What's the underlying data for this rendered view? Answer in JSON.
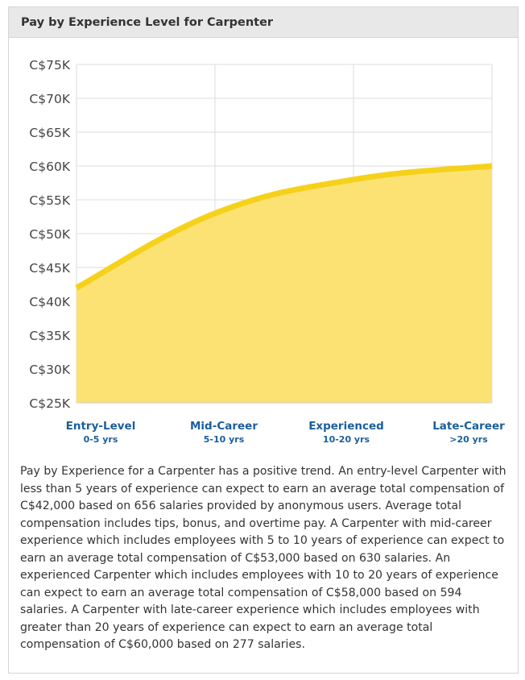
{
  "panel": {
    "title": "Pay by Experience Level for Carpenter"
  },
  "chart_data": {
    "type": "area",
    "title": "",
    "xlabel": "",
    "ylabel": "",
    "ylim": [
      25000,
      75000
    ],
    "yticks": [
      {
        "value": 75000,
        "label": "C$75K"
      },
      {
        "value": 70000,
        "label": "C$70K"
      },
      {
        "value": 65000,
        "label": "C$65K"
      },
      {
        "value": 60000,
        "label": "C$60K"
      },
      {
        "value": 55000,
        "label": "C$55K"
      },
      {
        "value": 50000,
        "label": "C$50K"
      },
      {
        "value": 45000,
        "label": "C$45K"
      },
      {
        "value": 40000,
        "label": "C$40K"
      },
      {
        "value": 35000,
        "label": "C$35K"
      },
      {
        "value": 30000,
        "label": "C$30K"
      },
      {
        "value": 25000,
        "label": "C$25K"
      }
    ],
    "categories": [
      {
        "name": "Entry-Level",
        "range": "0-5 yrs"
      },
      {
        "name": "Mid-Career",
        "range": "5-10 yrs"
      },
      {
        "name": "Experienced",
        "range": "10-20 yrs"
      },
      {
        "name": "Late-Career",
        "range": ">20 yrs"
      }
    ],
    "values": [
      42000,
      53000,
      58000,
      60000
    ],
    "grid": true,
    "colors": {
      "line": "#f5d11a",
      "fill": "#fbe273",
      "grid": "#dddddd",
      "category_label": "#1b5e9c",
      "tick_label": "#444444"
    }
  },
  "description": "Pay by Experience for a Carpenter has a positive trend. An entry-level Carpenter with less than 5 years of experience can expect to earn an average total compensation of C$42,000 based on 656 salaries provided by anonymous users. Average total compensation includes tips, bonus, and overtime pay. A Carpenter with mid-career experience which includes employees with 5 to 10 years of experience can expect to earn an average total compensation of C$53,000 based on 630 salaries. An experienced Carpenter which includes employees with 10 to 20 years of experience can expect to earn an average total compensation of C$58,000 based on 594 salaries. A Carpenter with late-career experience which includes employees with greater than 20 years of experience can expect to earn an average total compensation of C$60,000 based on 277 salaries."
}
